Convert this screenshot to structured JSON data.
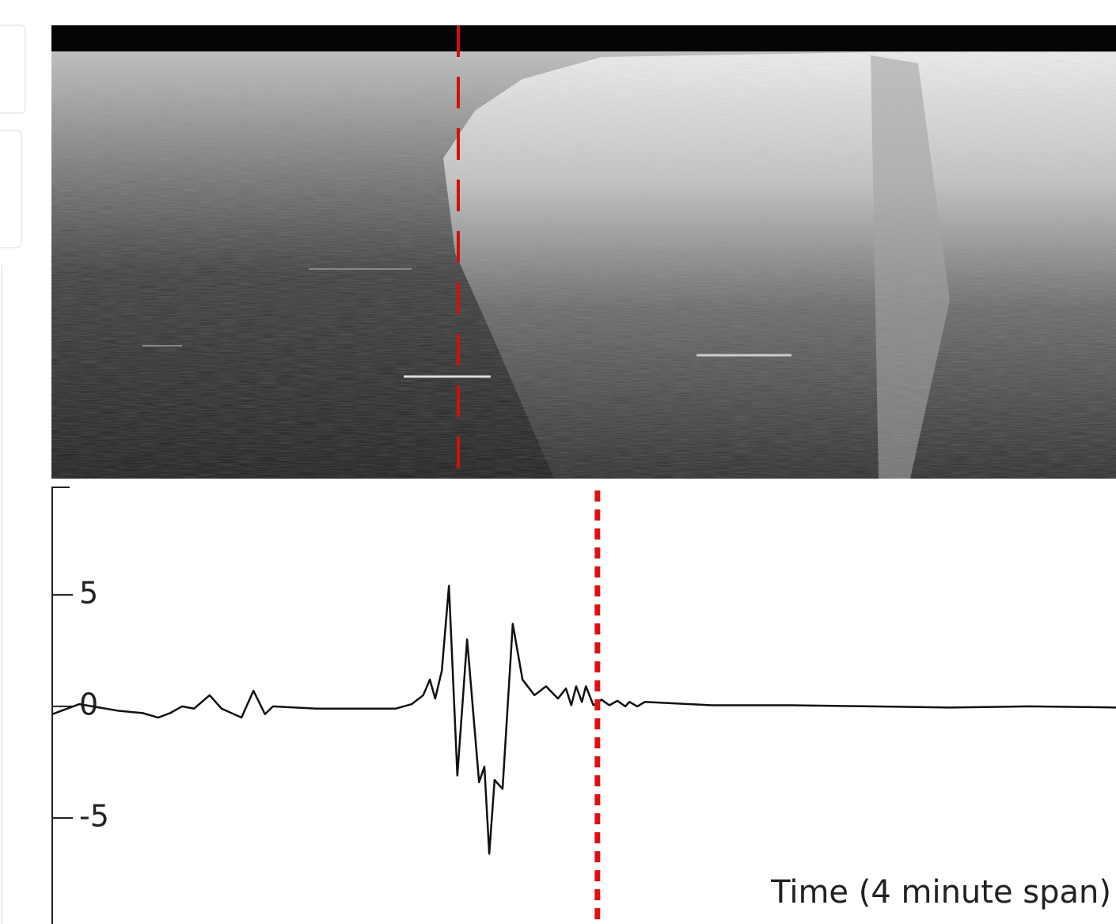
{
  "chart_data": {
    "type": "line",
    "x_label": "Time (4 minute span)",
    "xlim": [
      0,
      240
    ],
    "ylim": [
      -9.75,
      9.85
    ],
    "yticks": [
      5,
      0,
      -5
    ],
    "marker_x": 123,
    "series": [
      {
        "color": "#111111",
        "x": [
          0,
          6.1,
          15.0,
          20.4,
          23.9,
          26.6,
          29.3,
          32.0,
          35.5,
          38.2,
          42.7,
          45.4,
          48.0,
          49.8,
          59.6,
          77.5,
          81.1,
          83.7,
          85.2,
          86.4,
          87.9,
          89.5,
          91.4,
          93.6,
          96.3,
          97.5,
          98.6,
          99.8,
          101.6,
          103.9,
          106.1,
          108.8,
          111.4,
          114.1,
          115.9,
          117.1,
          118.2,
          119.5,
          120.4,
          122.1,
          123.9,
          125.7,
          127.5,
          129.3,
          130.2,
          132.0,
          133.7,
          148.9,
          166.8,
          184.6,
          202.5,
          220.4,
          240
        ],
        "values": [
          -0.35,
          0.1,
          -0.2,
          -0.3,
          -0.5,
          -0.3,
          0,
          -0.1,
          0.5,
          -0.1,
          -0.5,
          0.7,
          -0.35,
          0,
          -0.1,
          -0.1,
          0.1,
          0.5,
          1.2,
          0.35,
          1.6,
          5.4,
          -3.1,
          3.0,
          -3.4,
          -2.7,
          -6.6,
          -3.3,
          -3.7,
          3.7,
          1.2,
          0.5,
          0.9,
          0.35,
          0.8,
          0.05,
          0.9,
          0.2,
          0.9,
          0.05,
          0.3,
          0.05,
          0.25,
          0,
          0.2,
          0,
          0.2,
          0.05,
          0.05,
          0,
          -0.05,
          0,
          -0.05
        ]
      }
    ]
  }
}
